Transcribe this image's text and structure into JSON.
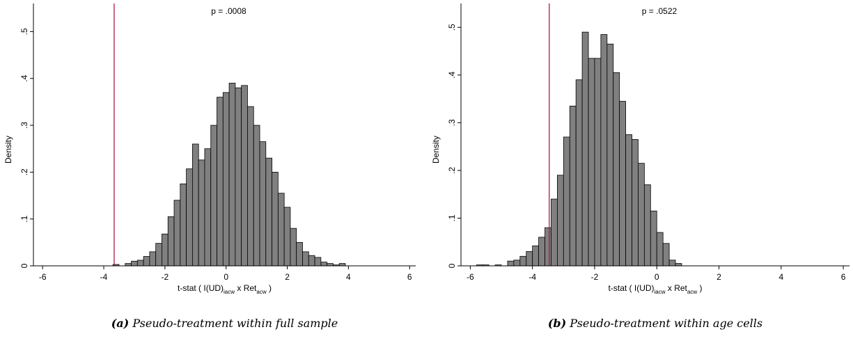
{
  "chart_data": [
    {
      "type": "histogram",
      "annotation": "p = .0008",
      "ylabel": "Density",
      "xlabel": [
        "t-stat ( I(UD)",
        "iacw",
        " x Ret",
        "acw",
        " )"
      ],
      "caption_label": "(a)",
      "caption": "Pseudo-treatment within full sample",
      "color": "#808080",
      "vline": -3.66,
      "vline_color": "#b0174a",
      "bins": [
        -3.7,
        -3.5,
        -3.3,
        -3.1,
        -2.9,
        -2.7,
        -2.5,
        -2.3,
        -2.1,
        -1.9,
        -1.7,
        -1.5,
        -1.3,
        -1.1,
        -0.9,
        -0.7,
        -0.5,
        -0.3,
        -0.1,
        0.1,
        0.3,
        0.5,
        0.7,
        0.9,
        1.1,
        1.3,
        1.5,
        1.7,
        1.9,
        2.1,
        2.3,
        2.5,
        2.7,
        2.9,
        3.1,
        3.3,
        3.5,
        3.7,
        3.9
      ],
      "values": [
        0.003,
        0,
        0.005,
        0.01,
        0.012,
        0.02,
        0.03,
        0.048,
        0.068,
        0.105,
        0.14,
        0.175,
        0.207,
        0.26,
        0.226,
        0.25,
        0.3,
        0.36,
        0.37,
        0.39,
        0.38,
        0.385,
        0.34,
        0.3,
        0.265,
        0.23,
        0.2,
        0.155,
        0.125,
        0.08,
        0.05,
        0.03,
        0.022,
        0.018,
        0.008,
        0.005,
        0.002,
        0.005
      ],
      "xlim": [
        -6.3,
        6.2
      ],
      "xticks": [
        -6,
        -4,
        -2,
        0,
        2,
        4,
        6
      ],
      "ylim": [
        0,
        0.56
      ],
      "yticks": [
        0,
        {
          "value": 0.1,
          "label": ".1"
        },
        {
          "value": 0.2,
          "label": ".2"
        },
        {
          "value": 0.3,
          "label": ".3"
        },
        {
          "value": 0.4,
          "label": ".4"
        },
        {
          "value": 0.5,
          "label": ".5"
        }
      ]
    },
    {
      "type": "histogram",
      "annotation": "p = .0522",
      "ylabel": "Density",
      "xlabel": [
        "t-stat ( I(UD)",
        "iacw",
        " x Ret",
        "acw",
        " )"
      ],
      "caption_label": "(b)",
      "caption": "Pseudo-treatment within age cells",
      "color": "#808080",
      "vline": -3.46,
      "vline_color": "#b0174a",
      "bins": [
        -5.8,
        -5.6,
        -5.4,
        -5.2,
        -5.0,
        -4.8,
        -4.6,
        -4.4,
        -4.2,
        -4.0,
        -3.8,
        -3.6,
        -3.4,
        -3.2,
        -3.0,
        -2.8,
        -2.6,
        -2.4,
        -2.2,
        -2.0,
        -1.8,
        -1.6,
        -1.4,
        -1.2,
        -1.0,
        -0.8,
        -0.6,
        -0.4,
        -0.2,
        0.0,
        0.2,
        0.4,
        0.6,
        0.8
      ],
      "values": [
        0.002,
        0.002,
        0,
        0.002,
        0,
        0.01,
        0.012,
        0.02,
        0.03,
        0.042,
        0.06,
        0.08,
        0.14,
        0.19,
        0.27,
        0.335,
        0.39,
        0.49,
        0.435,
        0.435,
        0.485,
        0.465,
        0.405,
        0.345,
        0.275,
        0.265,
        0.215,
        0.17,
        0.115,
        0.07,
        0.047,
        0.012,
        0.005
      ],
      "xlim": [
        -6.3,
        6.2
      ],
      "xticks": [
        -6,
        -4,
        -2,
        0,
        2,
        4,
        6
      ],
      "ylim": [
        0,
        0.55
      ],
      "yticks": [
        0,
        {
          "value": 0.1,
          "label": ".1"
        },
        {
          "value": 0.2,
          "label": ".2"
        },
        {
          "value": 0.3,
          "label": ".3"
        },
        {
          "value": 0.4,
          "label": ".4"
        },
        {
          "value": 0.5,
          "label": ".5"
        }
      ]
    }
  ]
}
